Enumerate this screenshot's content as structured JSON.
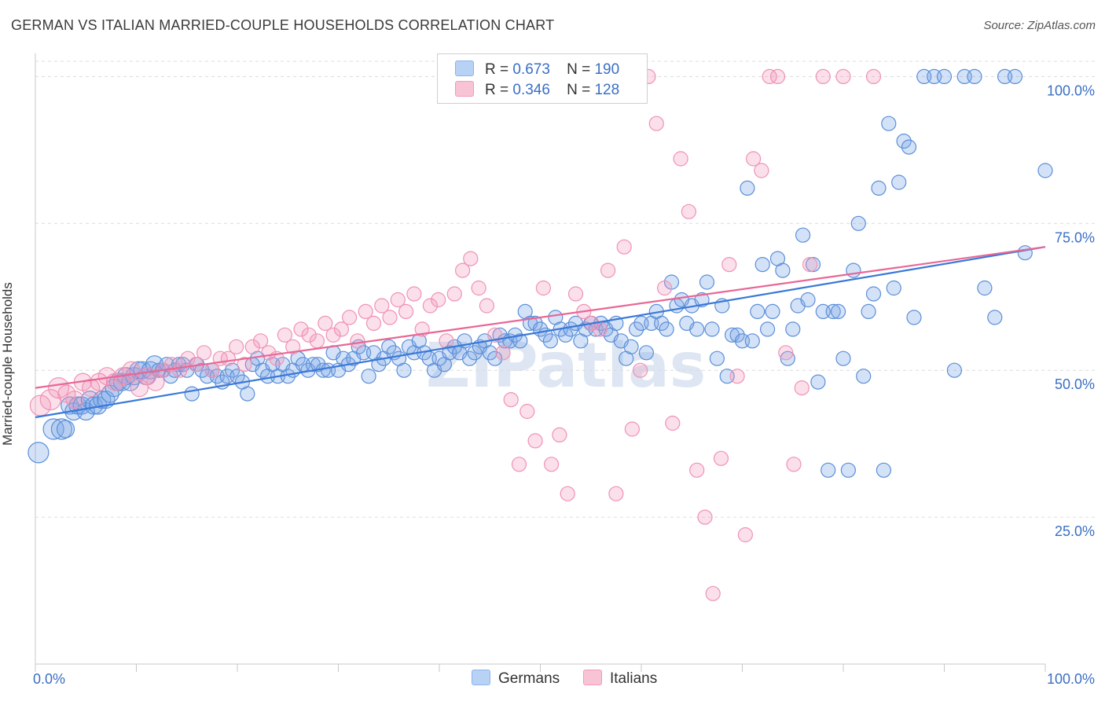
{
  "title": "GERMAN VS ITALIAN MARRIED-COUPLE HOUSEHOLDS CORRELATION CHART",
  "source": "Source: ZipAtlas.com",
  "watermark": "ZIPatlas",
  "legend": {
    "r_label": "R =",
    "n_label": "N =",
    "entries": [
      {
        "name": "Germans",
        "r": "0.673",
        "n": "190",
        "color": "#8ab4ec",
        "fill": "#b8d2f5"
      },
      {
        "name": "Italians",
        "r": "0.346",
        "n": "128",
        "color": "#f29ab7",
        "fill": "#f8c4d5"
      }
    ]
  },
  "chart_data": {
    "type": "scatter",
    "xlabel": "",
    "ylabel": "Married-couple Households",
    "xlim": [
      0,
      100
    ],
    "ylim": [
      0,
      105
    ],
    "x_tick_labels": [
      "0.0%",
      "100.0%"
    ],
    "y_tick_labels": [
      "25.0%",
      "50.0%",
      "75.0%",
      "100.0%"
    ],
    "y_ticks": [
      25,
      50,
      75,
      100
    ],
    "grid": "horizontal dashed",
    "series": [
      {
        "name": "Germans",
        "color": "#3a78d8",
        "trend": {
          "x": [
            0,
            100
          ],
          "y": [
            42.0,
            71.0
          ]
        },
        "points": [
          [
            0.3,
            36
          ],
          [
            1.8,
            40
          ],
          [
            2.6,
            40
          ],
          [
            3,
            40
          ],
          [
            3.4,
            44
          ],
          [
            3.8,
            43
          ],
          [
            4.2,
            44
          ],
          [
            4.6,
            44
          ],
          [
            5,
            43
          ],
          [
            5.4,
            45
          ],
          [
            5.8,
            44
          ],
          [
            6.2,
            44
          ],
          [
            6.6,
            45
          ],
          [
            7,
            45
          ],
          [
            7.4,
            46
          ],
          [
            7.8,
            47
          ],
          [
            8.2,
            48
          ],
          [
            8.6,
            48
          ],
          [
            9,
            49
          ],
          [
            9.4,
            48
          ],
          [
            9.8,
            49
          ],
          [
            10.2,
            50
          ],
          [
            10.6,
            50
          ],
          [
            11,
            49
          ],
          [
            11.4,
            50
          ],
          [
            11.8,
            51
          ],
          [
            12.2,
            50
          ],
          [
            12.6,
            50
          ],
          [
            13,
            51
          ],
          [
            13.4,
            49
          ],
          [
            13.8,
            50
          ],
          [
            14.2,
            51
          ],
          [
            14.6,
            51
          ],
          [
            15,
            50
          ],
          [
            15.5,
            46
          ],
          [
            16,
            51
          ],
          [
            16.5,
            50
          ],
          [
            17,
            49
          ],
          [
            17.5,
            50
          ],
          [
            18,
            49
          ],
          [
            18.5,
            48
          ],
          [
            19,
            49
          ],
          [
            19.5,
            50
          ],
          [
            20,
            49
          ],
          [
            20.5,
            48
          ],
          [
            21,
            46
          ],
          [
            21.5,
            51
          ],
          [
            22,
            52
          ],
          [
            22.5,
            50
          ],
          [
            23,
            49
          ],
          [
            23.5,
            51
          ],
          [
            24,
            49
          ],
          [
            24.5,
            51
          ],
          [
            25,
            49
          ],
          [
            25.5,
            50
          ],
          [
            26,
            52
          ],
          [
            26.5,
            51
          ],
          [
            27,
            50
          ],
          [
            27.5,
            51
          ],
          [
            28,
            51
          ],
          [
            28.5,
            50
          ],
          [
            29,
            50
          ],
          [
            29.5,
            53
          ],
          [
            30,
            50
          ],
          [
            30.5,
            52
          ],
          [
            31,
            51
          ],
          [
            31.5,
            52
          ],
          [
            32,
            54
          ],
          [
            32.5,
            53
          ],
          [
            33,
            49
          ],
          [
            33.5,
            53
          ],
          [
            34,
            51
          ],
          [
            34.5,
            52
          ],
          [
            35,
            54
          ],
          [
            35.5,
            53
          ],
          [
            36,
            52
          ],
          [
            36.5,
            50
          ],
          [
            37,
            54
          ],
          [
            37.5,
            53
          ],
          [
            38,
            55
          ],
          [
            38.5,
            53
          ],
          [
            39,
            52
          ],
          [
            39.5,
            50
          ],
          [
            40,
            52
          ],
          [
            40.5,
            51
          ],
          [
            41,
            53
          ],
          [
            41.5,
            54
          ],
          [
            42,
            53
          ],
          [
            42.5,
            55
          ],
          [
            43,
            52
          ],
          [
            43.5,
            53
          ],
          [
            44,
            54
          ],
          [
            44.5,
            55
          ],
          [
            45,
            53
          ],
          [
            45.5,
            52
          ],
          [
            46,
            56
          ],
          [
            46.5,
            55
          ],
          [
            47,
            55
          ],
          [
            47.5,
            56
          ],
          [
            48,
            55
          ],
          [
            48.5,
            60
          ],
          [
            49,
            58
          ],
          [
            49.5,
            58
          ],
          [
            50,
            57
          ],
          [
            50.5,
            56
          ],
          [
            51,
            55
          ],
          [
            51.5,
            59
          ],
          [
            52,
            57
          ],
          [
            52.5,
            56
          ],
          [
            53,
            57
          ],
          [
            53.5,
            58
          ],
          [
            54,
            55
          ],
          [
            54.5,
            57
          ],
          [
            55,
            58
          ],
          [
            55.5,
            57
          ],
          [
            56,
            58
          ],
          [
            56.5,
            57
          ],
          [
            57,
            56
          ],
          [
            57.5,
            58
          ],
          [
            58,
            55
          ],
          [
            58.5,
            52
          ],
          [
            59,
            54
          ],
          [
            59.5,
            57
          ],
          [
            60,
            58
          ],
          [
            60.5,
            53
          ],
          [
            61,
            58
          ],
          [
            61.5,
            60
          ],
          [
            62,
            58
          ],
          [
            62.5,
            57
          ],
          [
            63,
            65
          ],
          [
            63.5,
            61
          ],
          [
            64,
            62
          ],
          [
            64.5,
            58
          ],
          [
            65,
            61
          ],
          [
            65.5,
            57
          ],
          [
            66,
            62
          ],
          [
            66.5,
            65
          ],
          [
            67,
            57
          ],
          [
            67.5,
            52
          ],
          [
            68,
            61
          ],
          [
            68.5,
            49
          ],
          [
            69,
            56
          ],
          [
            69.5,
            56
          ],
          [
            70,
            55
          ],
          [
            70.5,
            81
          ],
          [
            71,
            55
          ],
          [
            71.5,
            60
          ],
          [
            72,
            68
          ],
          [
            72.5,
            57
          ],
          [
            73,
            60
          ],
          [
            73.5,
            69
          ],
          [
            74,
            67
          ],
          [
            74.5,
            52
          ],
          [
            75,
            57
          ],
          [
            75.5,
            61
          ],
          [
            76,
            73
          ],
          [
            76.5,
            62
          ],
          [
            77,
            68
          ],
          [
            77.5,
            48
          ],
          [
            78,
            60
          ],
          [
            78.5,
            33
          ],
          [
            79,
            60
          ],
          [
            79.5,
            60
          ],
          [
            80,
            52
          ],
          [
            80.5,
            33
          ],
          [
            81,
            67
          ],
          [
            81.5,
            75
          ],
          [
            82,
            49
          ],
          [
            82.5,
            60
          ],
          [
            83,
            63
          ],
          [
            83.5,
            81
          ],
          [
            84,
            33
          ],
          [
            84.5,
            92
          ],
          [
            85,
            64
          ],
          [
            85.5,
            82
          ],
          [
            86,
            89
          ],
          [
            86.5,
            88
          ],
          [
            87,
            59
          ],
          [
            88,
            100
          ],
          [
            89,
            100
          ],
          [
            90,
            100
          ],
          [
            91,
            50
          ],
          [
            92,
            100
          ],
          [
            93,
            100
          ],
          [
            94,
            64
          ],
          [
            95,
            59
          ],
          [
            96,
            100
          ],
          [
            97,
            100
          ],
          [
            98,
            70
          ],
          [
            100,
            84
          ]
        ]
      },
      {
        "name": "Italians",
        "color": "#e86796",
        "trend": {
          "x": [
            0,
            100
          ],
          "y": [
            47.0,
            71.0
          ]
        },
        "points": [
          [
            0.5,
            44
          ],
          [
            1.5,
            45
          ],
          [
            2.3,
            47
          ],
          [
            3.1,
            46
          ],
          [
            3.9,
            45
          ],
          [
            4.7,
            48
          ],
          [
            5.5,
            47
          ],
          [
            6.3,
            48
          ],
          [
            7.1,
            49
          ],
          [
            7.9,
            48
          ],
          [
            8.7,
            49
          ],
          [
            9.5,
            50
          ],
          [
            10.3,
            47
          ],
          [
            11.1,
            49
          ],
          [
            11.9,
            48
          ],
          [
            12.7,
            50
          ],
          [
            13.5,
            51
          ],
          [
            14.3,
            50
          ],
          [
            15.1,
            52
          ],
          [
            15.9,
            51
          ],
          [
            16.7,
            53
          ],
          [
            17.5,
            50
          ],
          [
            18.3,
            52
          ],
          [
            19.1,
            52
          ],
          [
            19.9,
            54
          ],
          [
            20.7,
            51
          ],
          [
            21.5,
            54
          ],
          [
            22.3,
            55
          ],
          [
            23.1,
            53
          ],
          [
            23.9,
            52
          ],
          [
            24.7,
            56
          ],
          [
            25.5,
            54
          ],
          [
            26.3,
            57
          ],
          [
            27.1,
            56
          ],
          [
            27.9,
            55
          ],
          [
            28.7,
            58
          ],
          [
            29.5,
            56
          ],
          [
            30.3,
            57
          ],
          [
            31.1,
            59
          ],
          [
            31.9,
            55
          ],
          [
            32.7,
            60
          ],
          [
            33.5,
            58
          ],
          [
            34.3,
            61
          ],
          [
            35.1,
            59
          ],
          [
            35.9,
            62
          ],
          [
            36.7,
            60
          ],
          [
            37.5,
            63
          ],
          [
            38.3,
            57
          ],
          [
            39.1,
            61
          ],
          [
            39.9,
            62
          ],
          [
            40.7,
            55
          ],
          [
            41.5,
            63
          ],
          [
            42.3,
            67
          ],
          [
            43.1,
            69
          ],
          [
            43.9,
            64
          ],
          [
            44.7,
            61
          ],
          [
            45.5,
            56
          ],
          [
            46.3,
            53
          ],
          [
            47.1,
            45
          ],
          [
            47.9,
            34
          ],
          [
            48.7,
            43
          ],
          [
            49.5,
            38
          ],
          [
            50.3,
            64
          ],
          [
            51.1,
            34
          ],
          [
            51.9,
            39
          ],
          [
            52.7,
            29
          ],
          [
            53.5,
            63
          ],
          [
            54.3,
            60
          ],
          [
            55.1,
            58
          ],
          [
            55.9,
            57
          ],
          [
            56.7,
            67
          ],
          [
            57.5,
            29
          ],
          [
            58.3,
            71
          ],
          [
            59.1,
            40
          ],
          [
            59.9,
            50
          ],
          [
            60.7,
            100
          ],
          [
            61.5,
            92
          ],
          [
            62.3,
            64
          ],
          [
            63.1,
            41
          ],
          [
            63.9,
            86
          ],
          [
            64.7,
            77
          ],
          [
            65.5,
            33
          ],
          [
            66.3,
            25
          ],
          [
            67.1,
            12
          ],
          [
            67.9,
            35
          ],
          [
            68.7,
            68
          ],
          [
            69.5,
            49
          ],
          [
            70.3,
            22
          ],
          [
            71.1,
            86
          ],
          [
            71.9,
            84
          ],
          [
            72.7,
            100
          ],
          [
            73.5,
            100
          ],
          [
            74.3,
            53
          ],
          [
            75.1,
            34
          ],
          [
            75.9,
            47
          ],
          [
            76.7,
            68
          ],
          [
            78,
            100
          ],
          [
            80,
            100
          ],
          [
            83,
            100
          ]
        ]
      }
    ]
  }
}
